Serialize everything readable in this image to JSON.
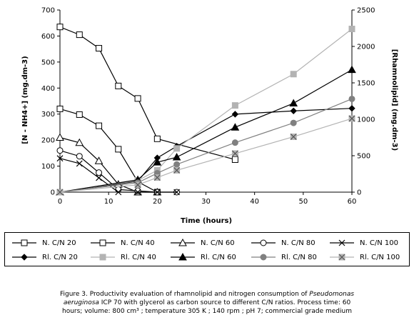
{
  "chart_data": {
    "type": "line",
    "xlabel": "Time (hours)",
    "ylabel": "[N - NH4+] (mg.dm-3)",
    "y2label": "[Rhamnolipid] (mg.dm-3)",
    "xlim": [
      0,
      60
    ],
    "ylim": [
      0,
      700
    ],
    "y2lim": [
      0,
      2500
    ],
    "xticks": [
      "0",
      "10",
      "20",
      "30",
      "40",
      "50",
      "60"
    ],
    "yticks": [
      "0",
      "100",
      "200",
      "300",
      "400",
      "500",
      "600",
      "700"
    ],
    "y2ticks": [
      "0",
      "500",
      "1000",
      "1500",
      "2000",
      "2500"
    ],
    "grid": false,
    "legend_position": "bottom",
    "series": [
      {
        "name": "N. C/N 20",
        "axis": "left",
        "color": "#000000",
        "marker": "square-open",
        "x": [
          0,
          4,
          8,
          12,
          16,
          20,
          36
        ],
        "y": [
          635,
          605,
          553,
          408,
          360,
          205,
          125
        ]
      },
      {
        "name": "N. C/N 40",
        "axis": "left",
        "color": "#000000",
        "marker": "square-open",
        "x": [
          0,
          4,
          8,
          12,
          16,
          20
        ],
        "y": [
          320,
          298,
          255,
          165,
          40,
          0
        ]
      },
      {
        "name": "N. C/N 60",
        "axis": "left",
        "color": "#000000",
        "marker": "triangle-open",
        "x": [
          0,
          4,
          8,
          12,
          16,
          20
        ],
        "y": [
          210,
          190,
          120,
          30,
          0,
          0
        ]
      },
      {
        "name": "N. C/N 80",
        "axis": "left",
        "color": "#000000",
        "marker": "circle-open",
        "x": [
          0,
          4,
          8,
          12,
          16,
          20,
          24
        ],
        "y": [
          160,
          138,
          75,
          10,
          5,
          0,
          0
        ]
      },
      {
        "name": "N. C/N 100",
        "axis": "left",
        "color": "#000000",
        "marker": "x",
        "x": [
          0,
          4,
          8,
          12,
          16,
          20,
          24
        ],
        "y": [
          130,
          110,
          55,
          0,
          0,
          0,
          0
        ]
      },
      {
        "name": "Rl. C/N 20",
        "axis": "right",
        "color": "#000000",
        "marker": "diamond-filled",
        "x": [
          0,
          16,
          20,
          24,
          36,
          48,
          60
        ],
        "y": [
          0,
          150,
          470,
          630,
          1070,
          1115,
          1150
        ]
      },
      {
        "name": "Rl. C/N 40",
        "axis": "right",
        "color": "#b3b3b3",
        "marker": "square-filled",
        "x": [
          0,
          16,
          20,
          24,
          36,
          48,
          60
        ],
        "y": [
          0,
          160,
          300,
          600,
          1190,
          1620,
          2240
        ]
      },
      {
        "name": "Rl. C/N 60",
        "axis": "right",
        "color": "#000000",
        "marker": "triangle-filled",
        "x": [
          0,
          16,
          20,
          24,
          36,
          48,
          60
        ],
        "y": [
          0,
          170,
          410,
          480,
          890,
          1220,
          1680
        ]
      },
      {
        "name": "Rl. C/N 80",
        "axis": "right",
        "color": "#808080",
        "marker": "circle-filled",
        "x": [
          0,
          16,
          20,
          24,
          36,
          48,
          60
        ],
        "y": [
          0,
          130,
          260,
          380,
          680,
          950,
          1280
        ]
      },
      {
        "name": "Rl. C/N 100",
        "axis": "right",
        "color": "#b3b3b3",
        "marker": "x-boxed",
        "x": [
          0,
          16,
          20,
          24,
          36,
          48,
          60
        ],
        "y": [
          0,
          100,
          200,
          300,
          530,
          760,
          1010
        ]
      }
    ]
  },
  "caption": {
    "line1_start": "Figure 3. Productivity evaluation of rhamnolipid and nitrogen consumption of ",
    "line1_italic": "Pseudomonas",
    "line2_italic": "aeruginosa",
    "line2_rest": " ICP 70 with glycerol as carbon source to different C/N ratios. Process time: 60",
    "line3": "hours; volume: 800 cm³ ; temperature 305 K ; 140 rpm ; pH 7; commercial grade medium"
  }
}
